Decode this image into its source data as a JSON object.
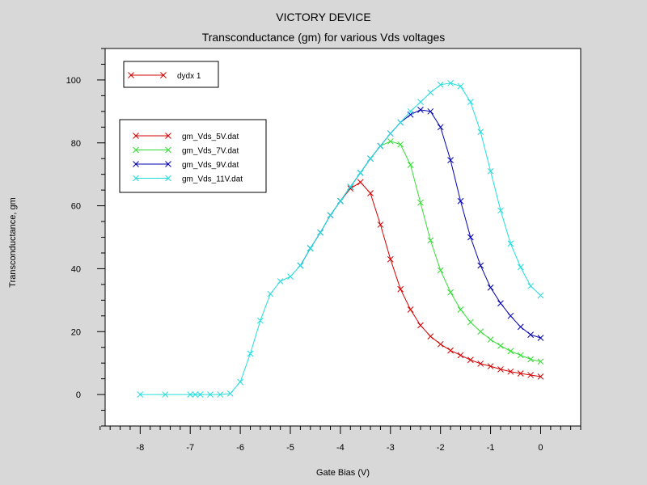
{
  "title": "VICTORY DEVICE",
  "subtitle": "Transconductance (gm) for various Vds voltages",
  "chart_data": {
    "type": "line",
    "title": "VICTORY DEVICE",
    "subtitle": "Transconductance (gm) for various Vds voltages",
    "xlabel": "Gate Bias (V)",
    "ylabel": "Transconductance, gm",
    "xlim": [
      -8.7,
      0.8
    ],
    "ylim": [
      -10,
      110
    ],
    "x_ticks": [
      -8,
      -7,
      -6,
      -5,
      -4,
      -3,
      -2,
      -1,
      0
    ],
    "x_tick_labels": [
      "-8",
      "-7",
      "-6",
      "-5",
      "-4",
      "-3",
      "-2",
      "-1",
      "0"
    ],
    "y_ticks": [
      0,
      20,
      40,
      60,
      80,
      100
    ],
    "y_tick_labels": [
      "0",
      "20",
      "40",
      "60",
      "80",
      "100"
    ],
    "grid": false,
    "legend_top": {
      "placement": "top-left",
      "entries": [
        {
          "name": "dydx 1",
          "color": "#d40000"
        }
      ]
    },
    "legend_main": {
      "placement": "upper-left",
      "entries": [
        {
          "name": "gm_Vds_5V.dat",
          "color": "#d40000"
        },
        {
          "name": "gm_Vds_7V.dat",
          "color": "#33dd33"
        },
        {
          "name": "gm_Vds_9V.dat",
          "color": "#0000b0"
        },
        {
          "name": "gm_Vds_11V.dat",
          "color": "#22dddd"
        }
      ]
    },
    "series": [
      {
        "name": "gm_Vds_5V.dat",
        "color": "#d40000",
        "x": [
          -4.0,
          -3.8,
          -3.6,
          -3.4,
          -3.2,
          -3.0,
          -2.8,
          -2.6,
          -2.4,
          -2.2,
          -2.0,
          -1.8,
          -1.6,
          -1.4,
          -1.2,
          -1.0,
          -0.8,
          -0.6,
          -0.4,
          -0.2,
          0.0
        ],
        "y": [
          61.5,
          65.5,
          67.5,
          64.0,
          54.0,
          43.0,
          33.5,
          27.0,
          22.0,
          18.5,
          16.0,
          14.0,
          12.5,
          11.0,
          9.8,
          9.0,
          8.0,
          7.3,
          6.7,
          6.2,
          5.7
        ]
      },
      {
        "name": "gm_Vds_7V.dat",
        "color": "#33dd33",
        "x": [
          -4.8,
          -4.6,
          -4.4,
          -4.2,
          -4.0,
          -3.8,
          -3.6,
          -3.4,
          -3.2,
          -3.0,
          -2.8,
          -2.6,
          -2.4,
          -2.2,
          -2.0,
          -1.8,
          -1.6,
          -1.4,
          -1.2,
          -1.0,
          -0.8,
          -0.6,
          -0.4,
          -0.2,
          0.0
        ],
        "y": [
          41.0,
          46.5,
          51.5,
          57.0,
          61.5,
          66.0,
          70.5,
          75.0,
          79.0,
          80.5,
          79.5,
          73.0,
          61.0,
          49.0,
          39.5,
          32.5,
          27.0,
          23.0,
          20.0,
          17.5,
          15.5,
          13.8,
          12.5,
          11.2,
          10.5
        ]
      },
      {
        "name": "gm_Vds_9V.dat",
        "color": "#0000b0",
        "x": [
          -4.8,
          -4.6,
          -4.4,
          -4.2,
          -4.0,
          -3.8,
          -3.6,
          -3.4,
          -3.2,
          -3.0,
          -2.8,
          -2.6,
          -2.4,
          -2.2,
          -2.0,
          -1.8,
          -1.6,
          -1.4,
          -1.2,
          -1.0,
          -0.8,
          -0.6,
          -0.4,
          -0.2,
          0.0
        ],
        "y": [
          41.0,
          46.5,
          51.5,
          57.0,
          61.5,
          66.0,
          70.5,
          75.0,
          79.0,
          83.0,
          86.5,
          89.0,
          90.5,
          90.0,
          85.0,
          74.5,
          61.5,
          50.0,
          41.0,
          34.0,
          29.0,
          25.0,
          21.5,
          19.0,
          18.0
        ]
      },
      {
        "name": "gm_Vds_11V.dat",
        "color": "#22dddd",
        "x": [
          -8.0,
          -7.5,
          -7.0,
          -6.9,
          -6.8,
          -6.6,
          -6.4,
          -6.2,
          -6.0,
          -5.8,
          -5.6,
          -5.4,
          -5.2,
          -5.0,
          -4.8,
          -4.6,
          -4.4,
          -4.2,
          -4.0,
          -3.8,
          -3.6,
          -3.4,
          -3.2,
          -3.0,
          -2.8,
          -2.6,
          -2.4,
          -2.2,
          -2.0,
          -1.8,
          -1.6,
          -1.4,
          -1.2,
          -1.0,
          -0.8,
          -0.6,
          -0.4,
          -0.2,
          0.0
        ],
        "y": [
          0.0,
          0.0,
          0.0,
          0.0,
          0.0,
          0.0,
          0.0,
          0.3,
          4.0,
          13.0,
          23.5,
          32.0,
          36.0,
          37.5,
          41.0,
          46.5,
          51.5,
          57.0,
          61.5,
          66.0,
          70.5,
          75.0,
          79.0,
          83.0,
          86.5,
          90.0,
          93.0,
          96.0,
          98.5,
          99.0,
          98.0,
          93.0,
          83.5,
          71.0,
          58.5,
          48.0,
          40.5,
          34.5,
          31.5
        ]
      }
    ]
  }
}
